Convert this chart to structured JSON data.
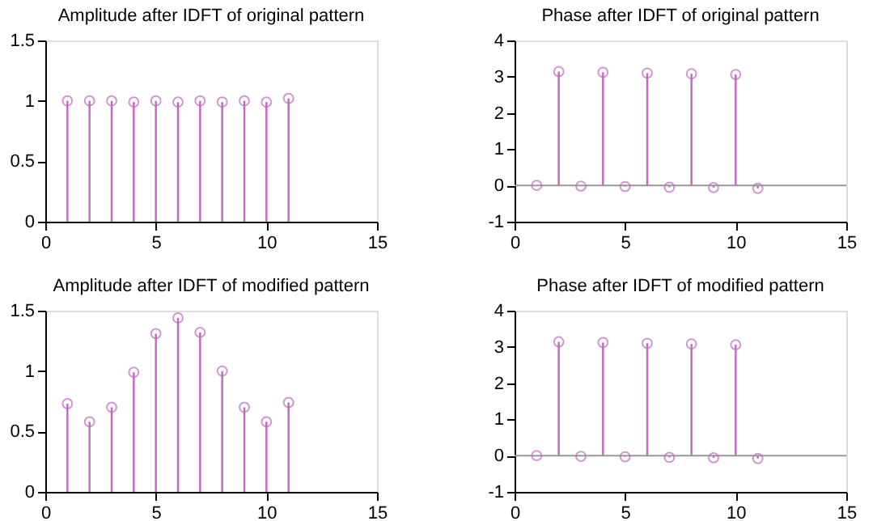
{
  "chart_data": [
    {
      "type": "lollipop",
      "title": "Amplitude after IDFT of original pattern",
      "x": [
        1,
        2,
        3,
        4,
        5,
        6,
        7,
        8,
        9,
        10,
        11
      ],
      "values": [
        1.0,
        1.0,
        1.0,
        0.99,
        1.0,
        0.99,
        1.0,
        0.99,
        1.0,
        0.99,
        1.02
      ],
      "color": "#c266c2",
      "marker": "circle",
      "grid": false,
      "xlim": [
        0,
        15
      ],
      "xticks": [
        0,
        5,
        10,
        15
      ],
      "ylim": [
        0,
        1.5
      ],
      "yticks": [
        0,
        0.5,
        1,
        1.5
      ]
    },
    {
      "type": "lollipop",
      "title": "Phase after IDFT of original pattern",
      "x": [
        1,
        2,
        3,
        4,
        5,
        6,
        7,
        8,
        9,
        10,
        11
      ],
      "values": [
        0,
        3.14,
        -0.02,
        3.12,
        -0.03,
        3.1,
        -0.05,
        3.08,
        -0.06,
        3.06,
        -0.08
      ],
      "color": "#c266c2",
      "marker": "circle",
      "grid": false,
      "xlim": [
        0,
        15
      ],
      "xticks": [
        0,
        5,
        10,
        15
      ],
      "ylim": [
        -1,
        4
      ],
      "yticks": [
        -1,
        0,
        1,
        2,
        3,
        4
      ],
      "ref_lines": [
        {
          "axis": "y",
          "value": 0,
          "color": "#999999"
        }
      ]
    },
    {
      "type": "lollipop",
      "title": "Amplitude after IDFT of modified pattern",
      "x": [
        1,
        2,
        3,
        4,
        5,
        6,
        7,
        8,
        9,
        10,
        11
      ],
      "values": [
        0.73,
        0.58,
        0.7,
        0.99,
        1.31,
        1.44,
        1.32,
        1.0,
        0.7,
        0.58,
        0.74
      ],
      "color": "#c266c2",
      "marker": "circle",
      "grid": false,
      "xlim": [
        0,
        15
      ],
      "xticks": [
        0,
        5,
        10,
        15
      ],
      "ylim": [
        0,
        1.5
      ],
      "yticks": [
        0,
        0.5,
        1,
        1.5
      ]
    },
    {
      "type": "lollipop",
      "title": "Phase after IDFT of modified pattern",
      "x": [
        1,
        2,
        3,
        4,
        5,
        6,
        7,
        8,
        9,
        10,
        11
      ],
      "values": [
        0,
        3.14,
        -0.02,
        3.12,
        -0.03,
        3.1,
        -0.05,
        3.08,
        -0.06,
        3.06,
        -0.08
      ],
      "color": "#c266c2",
      "marker": "circle",
      "grid": false,
      "xlim": [
        0,
        15
      ],
      "xticks": [
        0,
        5,
        10,
        15
      ],
      "ylim": [
        -1,
        4
      ],
      "yticks": [
        -1,
        0,
        1,
        2,
        3,
        4
      ],
      "ref_lines": [
        {
          "axis": "y",
          "value": 0,
          "color": "#999999"
        }
      ]
    }
  ]
}
